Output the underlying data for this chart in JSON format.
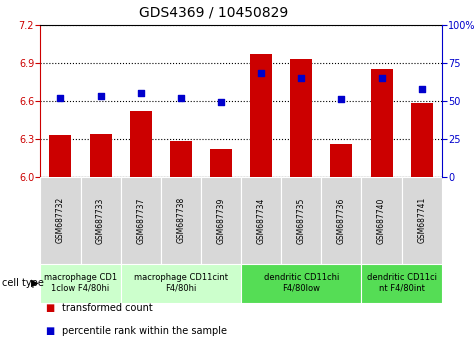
{
  "title": "GDS4369 / 10450829",
  "samples": [
    "GSM687732",
    "GSM687733",
    "GSM687737",
    "GSM687738",
    "GSM687739",
    "GSM687734",
    "GSM687735",
    "GSM687736",
    "GSM687740",
    "GSM687741"
  ],
  "bar_values": [
    6.33,
    6.34,
    6.52,
    6.28,
    6.22,
    6.97,
    6.93,
    6.26,
    6.85,
    6.58
  ],
  "dot_values": [
    52,
    53,
    55,
    52,
    49,
    68,
    65,
    51,
    65,
    58
  ],
  "ylim": [
    6.0,
    7.2
  ],
  "y2lim": [
    0,
    100
  ],
  "yticks": [
    6.0,
    6.3,
    6.6,
    6.9,
    7.2
  ],
  "y2ticks": [
    0,
    25,
    50,
    75,
    100
  ],
  "y2ticklabels": [
    "0",
    "25",
    "50",
    "75",
    "100%"
  ],
  "bar_color": "#cc0000",
  "dot_color": "#0000cc",
  "bar_width": 0.55,
  "cell_types": [
    {
      "label": "macrophage CD1\n1clow F4/80hi",
      "start": 0,
      "end": 2,
      "color": "#ccffcc"
    },
    {
      "label": "macrophage CD11cint\nF4/80hi",
      "start": 2,
      "end": 5,
      "color": "#ccffcc"
    },
    {
      "label": "dendritic CD11chi\nF4/80low",
      "start": 5,
      "end": 8,
      "color": "#55dd55"
    },
    {
      "label": "dendritic CD11ci\nnt F4/80int",
      "start": 8,
      "end": 10,
      "color": "#55dd55"
    }
  ],
  "legend_entries": [
    {
      "label": "transformed count",
      "color": "#cc0000"
    },
    {
      "label": "percentile rank within the sample",
      "color": "#0000cc"
    }
  ],
  "bg_color": "#ffffff",
  "table_bg": "#d8d8d8",
  "title_fontsize": 10,
  "axis_fontsize": 8,
  "tick_fontsize": 7,
  "sample_fontsize": 5.5,
  "cell_fontsize": 6,
  "legend_fontsize": 7
}
